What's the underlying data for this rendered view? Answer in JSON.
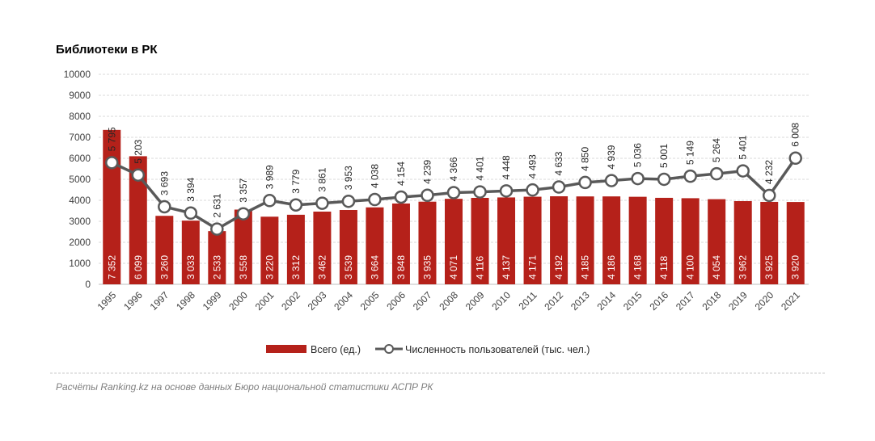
{
  "source_note": "Расчёты Ranking.kz на основе данных Бюро национальной статистики АСПР РК",
  "chart_data": {
    "type": "bar",
    "title": "Библиотеки в РК",
    "xlabel": "",
    "ylabel": "",
    "ylim": [
      0,
      10000
    ],
    "yticks": [
      0,
      1000,
      2000,
      3000,
      4000,
      5000,
      6000,
      7000,
      8000,
      9000,
      10000
    ],
    "grid": true,
    "legend_position": "bottom",
    "categories": [
      "1995",
      "1996",
      "1997",
      "1998",
      "1999",
      "2000",
      "2001",
      "2002",
      "2003",
      "2004",
      "2005",
      "2006",
      "2007",
      "2008",
      "2009",
      "2010",
      "2011",
      "2012",
      "2013",
      "2014",
      "2015",
      "2016",
      "2017",
      "2018",
      "2019",
      "2020",
      "2021"
    ],
    "series": [
      {
        "name": "Всего (ед.)",
        "type": "bar",
        "color": "#b5211a",
        "values": [
          7352,
          6099,
          3260,
          3033,
          2533,
          3558,
          3220,
          3312,
          3462,
          3539,
          3664,
          3848,
          3935,
          4071,
          4116,
          4137,
          4171,
          4192,
          4185,
          4186,
          4168,
          4118,
          4100,
          4054,
          3962,
          3925,
          3920
        ],
        "labels": [
          "7 352",
          "6 099",
          "3 260",
          "3 033",
          "2 533",
          "3 558",
          "3 220",
          "3 312",
          "3 462",
          "3 539",
          "3 664",
          "3 848",
          "3 935",
          "4 071",
          "4 116",
          "4 137",
          "4 171",
          "4 192",
          "4 185",
          "4 186",
          "4 168",
          "4 118",
          "4 100",
          "4 054",
          "3 962",
          "3 925",
          "3 920"
        ]
      },
      {
        "name": "Численность пользователей (тыс. чел.)",
        "type": "line",
        "color": "#595959",
        "values": [
          5795,
          5203,
          3693,
          3394,
          2631,
          3357,
          3989,
          3779,
          3861,
          3953,
          4038,
          4154,
          4239,
          4366,
          4401,
          4448,
          4493,
          4633,
          4850,
          4939,
          5036,
          5001,
          5149,
          5264,
          5401,
          4232,
          6008
        ],
        "labels": [
          "5 795",
          "5 203",
          "3 693",
          "3 394",
          "2 631",
          "3 357",
          "3 989",
          "3 779",
          "3 861",
          "3 953",
          "4 038",
          "4 154",
          "4 239",
          "4 366",
          "4 401",
          "4 448",
          "4 493",
          "4 633",
          "4 850",
          "4 939",
          "5 036",
          "5 001",
          "5 149",
          "5 264",
          "5 401",
          "4 232",
          "6 008"
        ]
      }
    ]
  }
}
